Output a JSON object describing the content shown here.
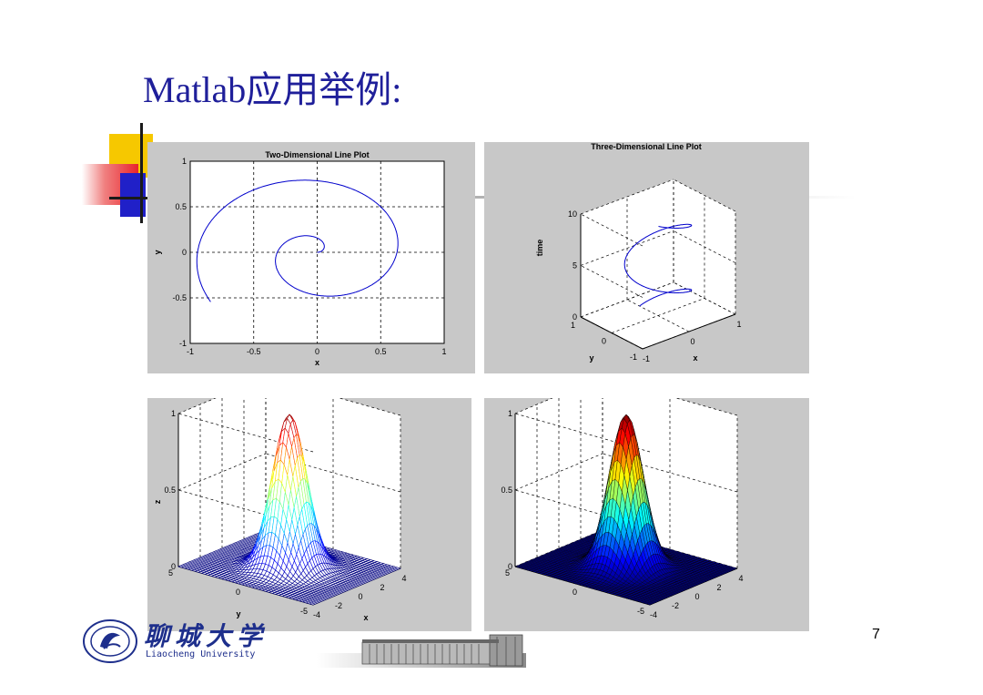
{
  "slide": {
    "title": "Matlab应用举例:",
    "page_number": "7"
  },
  "footer": {
    "university_cn": "聊城大学",
    "university_en": "Liaocheng University"
  },
  "colors": {
    "title": "#1f1f9a",
    "panel_bg": "#c8c8c8",
    "line": "#0000cc",
    "deco_yellow": "#f6c800",
    "deco_red": "#e8242c",
    "deco_blue": "#2020c8"
  },
  "chart_data": [
    {
      "type": "line",
      "title": "Two-Dimensional Line Plot",
      "xlabel": "x",
      "ylabel": "y",
      "xlim": [
        -1,
        1
      ],
      "ylim": [
        -1,
        1
      ],
      "xticks": [
        "-1",
        "-0.5",
        "0",
        "0.5",
        "1"
      ],
      "yticks": [
        "-1",
        "-0.5",
        "0",
        "0.5",
        "1"
      ],
      "grid": true,
      "series": [
        {
          "function": "x = t/10*cos(t), y = t/10*sin(t)",
          "t_range": [
            0,
            10
          ],
          "color": "#0000cc"
        }
      ]
    },
    {
      "type": "line",
      "title": "Three-Dimensional Line Plot",
      "xlabel": "x",
      "ylabel": "y",
      "zlabel": "time",
      "xlim": [
        -1,
        1
      ],
      "ylim": [
        -1,
        1
      ],
      "zlim": [
        0,
        10
      ],
      "xticks": [
        "-1",
        "0",
        "1"
      ],
      "yticks": [
        "-1",
        "0",
        "1"
      ],
      "zticks": [
        "0",
        "5",
        "10"
      ],
      "grid": true,
      "series": [
        {
          "function": "x = sin(t), y = cos(t), z = t",
          "t_range": [
            0,
            10
          ],
          "color": "#0000cc"
        }
      ]
    },
    {
      "type": "surface-mesh",
      "title": "",
      "xlabel": "x",
      "ylabel": "y",
      "zlabel": "z",
      "xlim": [
        -4,
        4
      ],
      "ylim": [
        -5,
        5
      ],
      "zlim": [
        0,
        1
      ],
      "xticks": [
        "-4",
        "-2",
        "0",
        "2",
        "4"
      ],
      "yticks": [
        "-5",
        "0",
        "5"
      ],
      "zticks": [
        "0",
        "0.5",
        "1"
      ],
      "grid": true,
      "colormap": "jet",
      "series": [
        {
          "function": "z = exp(-(x^2 + y^2)/2)"
        }
      ]
    },
    {
      "type": "surface",
      "title": "",
      "xlabel": "",
      "ylabel": "",
      "zlabel": "",
      "xlim": [
        -4,
        4
      ],
      "ylim": [
        -5,
        5
      ],
      "zlim": [
        0,
        1
      ],
      "xticks": [
        "-4",
        "-2",
        "0",
        "2",
        "4"
      ],
      "yticks": [
        "-5",
        "0",
        "5"
      ],
      "zticks": [
        "0",
        "0.5",
        "1"
      ],
      "grid": true,
      "colormap": "jet",
      "series": [
        {
          "function": "z = exp(-(x^2 + y^2)/2)"
        }
      ]
    }
  ]
}
